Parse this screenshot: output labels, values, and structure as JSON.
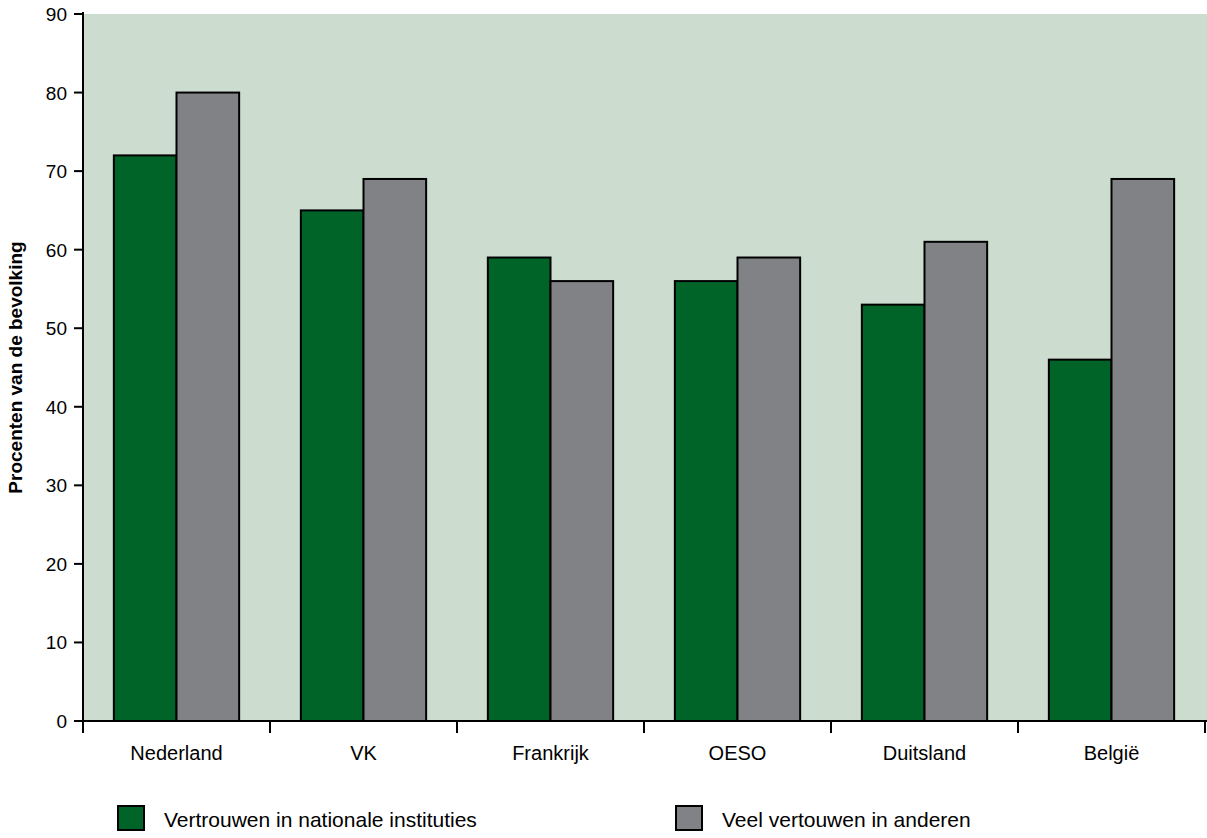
{
  "chart_data": {
    "type": "bar",
    "categories": [
      "Nederland",
      "VK",
      "Frankrijk",
      "OESO",
      "Duitsland",
      "België"
    ],
    "series": [
      {
        "name": "Vertrouwen in nationale instituties",
        "color": "#006428",
        "values": [
          72,
          65,
          59,
          56,
          53,
          46
        ]
      },
      {
        "name": "Veel vertouwen in anderen",
        "color": "#808285",
        "values": [
          80,
          69,
          56,
          59,
          61,
          69
        ]
      }
    ],
    "y_label": "Procenten van de bevolking",
    "ylim": [
      0,
      90
    ],
    "yticks": [
      0,
      10,
      20,
      30,
      40,
      50,
      60,
      70,
      80,
      90
    ],
    "grid": false,
    "legend": "bottom"
  }
}
